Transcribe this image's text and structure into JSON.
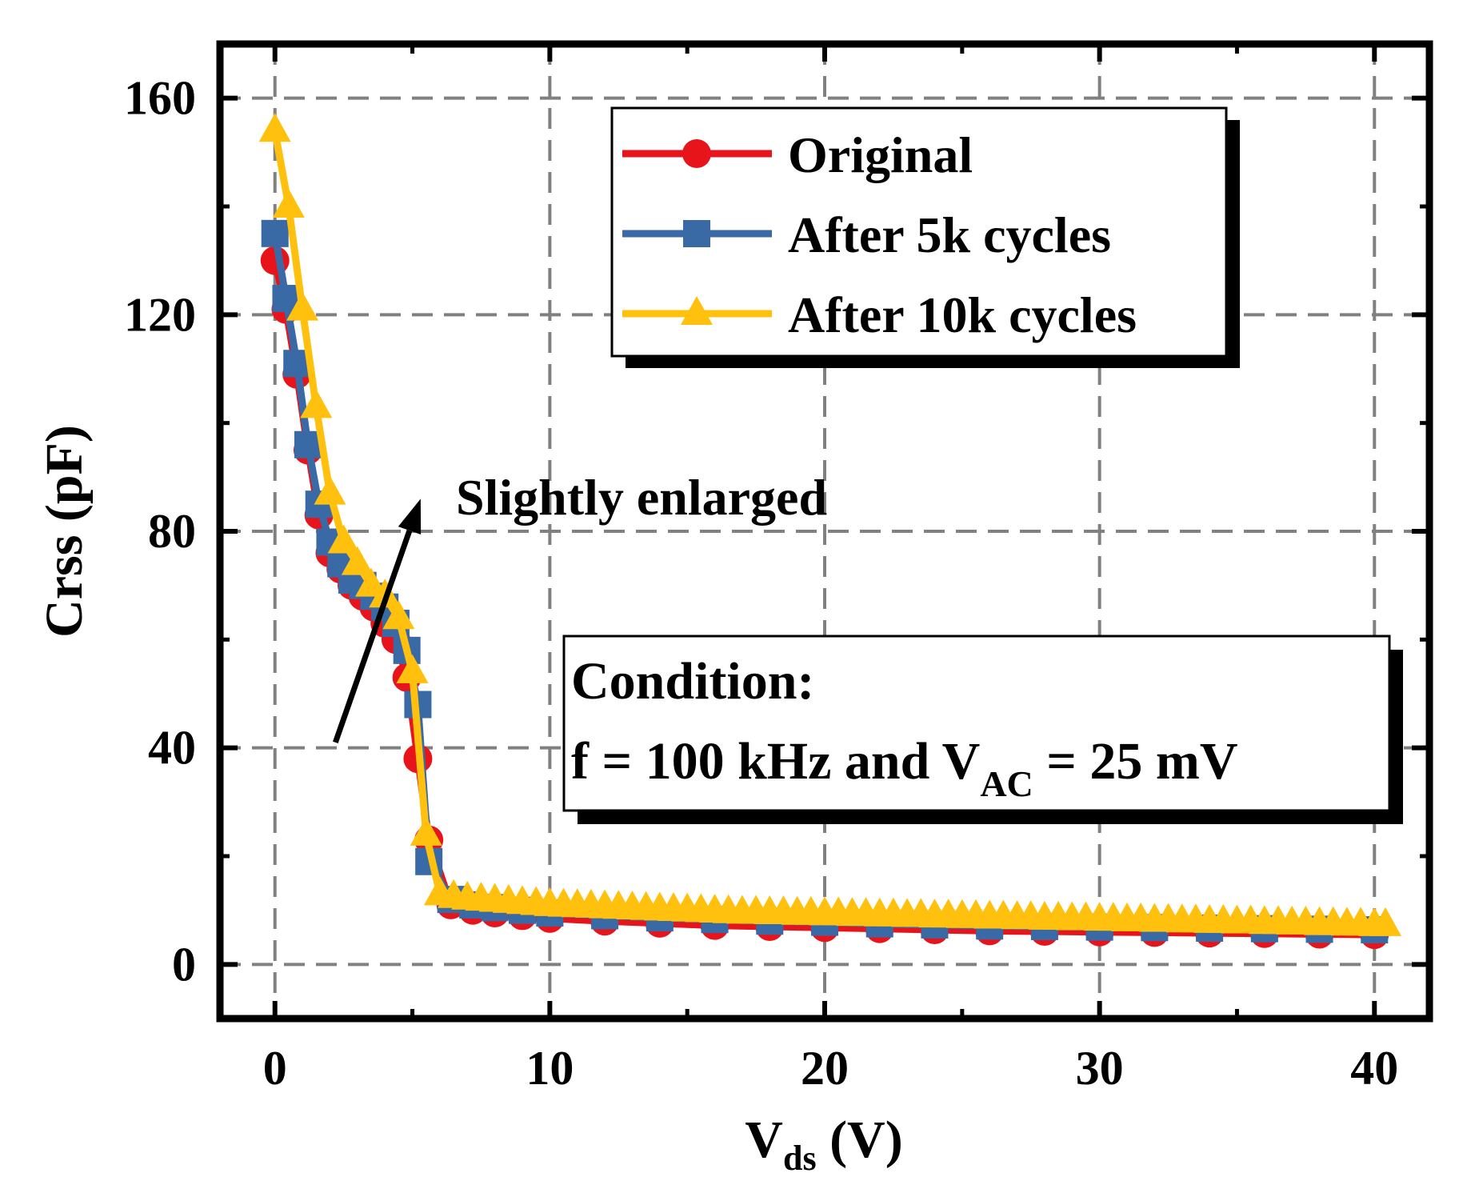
{
  "chart_data": {
    "type": "line",
    "xlabel": {
      "main": "V",
      "sub": "ds",
      "unit": " (V)"
    },
    "ylabel": "Crss (pF)",
    "xlim": [
      -2,
      42
    ],
    "ylim": [
      -10,
      170
    ],
    "xticks": [
      0,
      10,
      20,
      30,
      40
    ],
    "yticks": [
      0,
      40,
      80,
      120,
      160
    ],
    "grid": true,
    "legend_position": "top-right",
    "series": [
      {
        "name": "Original",
        "color": "#e8141b",
        "marker": "circle",
        "x": [
          0,
          0.4,
          0.8,
          1.2,
          1.6,
          2.0,
          2.4,
          2.8,
          3.2,
          3.6,
          4.0,
          4.4,
          4.8,
          5.2,
          5.6,
          6.4,
          7.2,
          8,
          9,
          10,
          12,
          14,
          16,
          18,
          20,
          22,
          24,
          26,
          28,
          30,
          32,
          34,
          36,
          38,
          40
        ],
        "y": [
          130,
          121,
          109,
          95,
          83,
          76,
          73,
          70,
          68,
          66,
          63,
          60,
          53,
          38,
          23,
          11,
          10,
          9.5,
          9,
          8.5,
          8,
          7.6,
          7.2,
          7,
          6.8,
          6.6,
          6.4,
          6.2,
          6.1,
          6,
          5.9,
          5.8,
          5.7,
          5.6,
          5.5
        ]
      },
      {
        "name": "After 5k cycles",
        "color": "#3a6aa6",
        "marker": "square",
        "x": [
          0,
          0.4,
          0.8,
          1.2,
          1.6,
          2.0,
          2.4,
          2.8,
          3.2,
          3.6,
          4.0,
          4.4,
          4.8,
          5.2,
          5.6,
          6.4,
          7.2,
          8,
          9,
          10,
          12,
          14,
          16,
          18,
          20,
          22,
          24,
          26,
          28,
          30,
          32,
          34,
          36,
          38,
          40
        ],
        "y": [
          135,
          123,
          111,
          96,
          85,
          78,
          74,
          71,
          70,
          68,
          66,
          63,
          58,
          48,
          19,
          12,
          11,
          10.5,
          10,
          9.5,
          9,
          8.6,
          8.3,
          8,
          7.8,
          7.5,
          7.3,
          7.1,
          7,
          6.9,
          6.8,
          6.7,
          6.6,
          6.5,
          6.4
        ]
      },
      {
        "name": "After 10k cycles",
        "color": "#ffc10e",
        "marker": "triangle",
        "x": [
          0,
          0.5,
          1.0,
          1.5,
          2.0,
          2.5,
          3.0,
          3.5,
          4.0,
          4.5,
          5.0,
          5.5,
          6.0,
          6.5,
          7.0,
          7.5,
          8.0,
          8.5,
          9.0,
          9.5,
          10.0,
          10.5,
          11.0,
          11.5,
          12.0,
          12.5,
          13.0,
          13.5,
          14.0,
          14.5,
          15.0,
          15.5,
          16.0,
          16.5,
          17.0,
          17.5,
          18.0,
          18.5,
          19.0,
          19.5,
          20.0,
          20.5,
          21.0,
          21.5,
          22.0,
          22.5,
          23.0,
          23.5,
          24.0,
          24.5,
          25.0,
          25.5,
          26.0,
          26.5,
          27.0,
          27.5,
          28.0,
          28.5,
          29.0,
          29.5,
          30.0,
          30.5,
          31.0,
          31.5,
          32.0,
          32.5,
          33.0,
          33.5,
          34.0,
          34.5,
          35.0,
          35.5,
          36.0,
          36.5,
          37.0,
          37.5,
          38.0,
          38.5,
          39.0,
          39.5,
          40.0,
          40.4
        ],
        "y": [
          154,
          140,
          121,
          103,
          87,
          78,
          74,
          70,
          68,
          64,
          54,
          24,
          13,
          12.5,
          12.2,
          12,
          11.8,
          11.6,
          11.4,
          11.2,
          11,
          10.9,
          10.8,
          10.7,
          10.6,
          10.5,
          10.4,
          10.3,
          10.2,
          10.1,
          10,
          9.9,
          9.8,
          9.7,
          9.6,
          9.6,
          9.5,
          9.5,
          9.4,
          9.4,
          9.3,
          9.3,
          9.2,
          9.2,
          9.1,
          9.1,
          9,
          9,
          8.9,
          8.9,
          8.8,
          8.8,
          8.7,
          8.7,
          8.6,
          8.6,
          8.5,
          8.5,
          8.4,
          8.4,
          8.3,
          8.3,
          8.2,
          8.2,
          8.1,
          8.1,
          8,
          8,
          7.9,
          7.9,
          7.8,
          7.8,
          7.7,
          7.7,
          7.6,
          7.6,
          7.5,
          7.5,
          7.4,
          7.4,
          7.3,
          7.3
        ]
      }
    ],
    "annotations": [
      {
        "text": "Slightly enlarged",
        "arrow_from": [
          2.2,
          41
        ],
        "arrow_to": [
          5.3,
          86
        ]
      }
    ],
    "condition_box": {
      "line1": "Condition:",
      "line2_prefix": "f = 100 kHz and V",
      "line2_sub": "AC",
      "line2_suffix": " = 25 mV"
    }
  }
}
